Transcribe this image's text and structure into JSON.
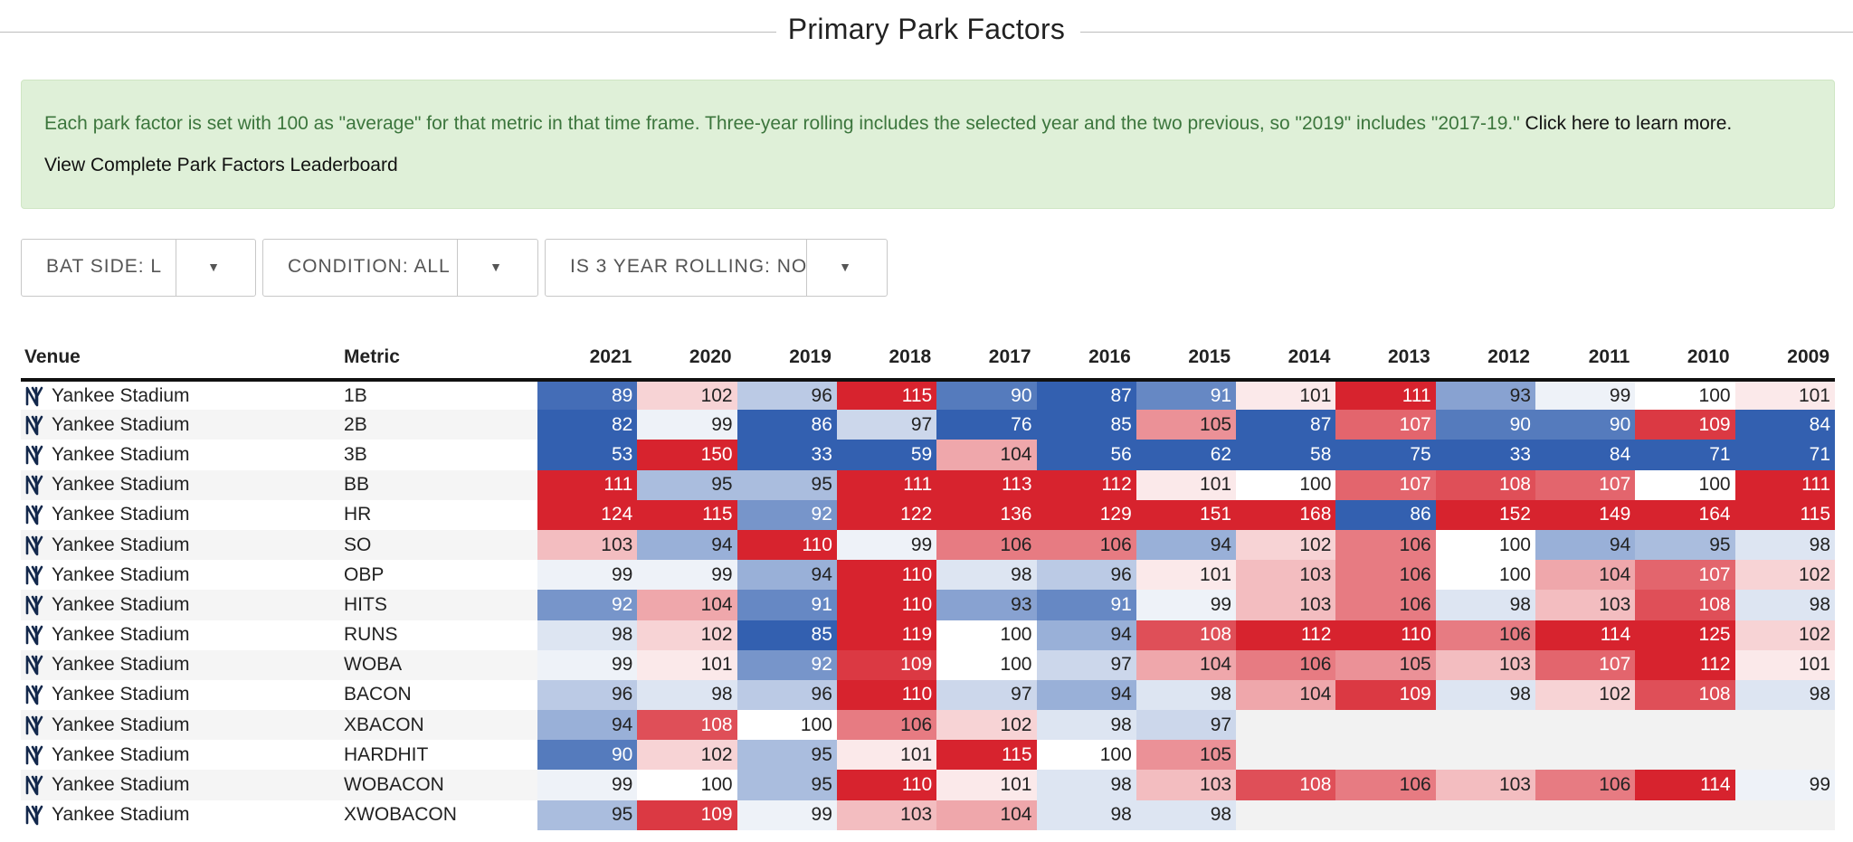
{
  "header": {
    "title": "Primary Park Factors"
  },
  "notice": {
    "text": "Each park factor is set with 100 as \"average\" for that metric in that time frame. Three-year rolling includes the selected year and the two previous, so \"2019\" includes \"2017-19.\" ",
    "link": "Click here to learn more.",
    "leaderboard_link": "View Complete Park Factors Leaderboard"
  },
  "filters": [
    {
      "label": "BAT SIDE: L"
    },
    {
      "label": "CONDITION: ALL"
    },
    {
      "label": "IS 3 YEAR ROLLING: NO"
    }
  ],
  "table": {
    "venue_header": "Venue",
    "metric_header": "Metric",
    "years": [
      "2021",
      "2020",
      "2019",
      "2018",
      "2017",
      "2016",
      "2015",
      "2014",
      "2013",
      "2012",
      "2011",
      "2010",
      "2009"
    ],
    "venue": "Yankee Stadium",
    "team_icon": "ny-yankees-logo-icon",
    "rows": [
      {
        "metric": "1B",
        "values": [
          89,
          102,
          96,
          115,
          90,
          87,
          91,
          101,
          111,
          93,
          99,
          100,
          101
        ]
      },
      {
        "metric": "2B",
        "values": [
          82,
          99,
          86,
          97,
          76,
          85,
          105,
          87,
          107,
          90,
          90,
          109,
          84
        ]
      },
      {
        "metric": "3B",
        "values": [
          53,
          150,
          33,
          59,
          104,
          56,
          62,
          58,
          75,
          33,
          84,
          71,
          71
        ]
      },
      {
        "metric": "BB",
        "values": [
          111,
          95,
          95,
          111,
          113,
          112,
          101,
          100,
          107,
          108,
          107,
          100,
          111
        ]
      },
      {
        "metric": "HR",
        "values": [
          124,
          115,
          92,
          122,
          136,
          129,
          151,
          168,
          86,
          152,
          149,
          164,
          115
        ]
      },
      {
        "metric": "SO",
        "values": [
          103,
          94,
          110,
          99,
          106,
          106,
          94,
          102,
          106,
          100,
          94,
          95,
          98
        ]
      },
      {
        "metric": "OBP",
        "values": [
          99,
          99,
          94,
          110,
          98,
          96,
          101,
          103,
          106,
          100,
          104,
          107,
          102
        ]
      },
      {
        "metric": "HITS",
        "values": [
          92,
          104,
          91,
          110,
          93,
          91,
          99,
          103,
          106,
          98,
          103,
          108,
          98
        ]
      },
      {
        "metric": "RUNS",
        "values": [
          98,
          102,
          85,
          119,
          100,
          94,
          108,
          112,
          110,
          106,
          114,
          125,
          102
        ]
      },
      {
        "metric": "WOBA",
        "values": [
          99,
          101,
          92,
          109,
          100,
          97,
          104,
          106,
          105,
          103,
          107,
          112,
          101
        ]
      },
      {
        "metric": "BACON",
        "values": [
          96,
          98,
          96,
          110,
          97,
          94,
          98,
          104,
          109,
          98,
          102,
          108,
          98
        ]
      },
      {
        "metric": "XBACON",
        "values": [
          94,
          108,
          100,
          106,
          102,
          98,
          97,
          null,
          null,
          null,
          null,
          null,
          null
        ]
      },
      {
        "metric": "HARDHIT",
        "values": [
          90,
          102,
          95,
          101,
          115,
          100,
          105,
          null,
          null,
          null,
          null,
          null,
          null
        ]
      },
      {
        "metric": "WOBACON",
        "values": [
          99,
          100,
          95,
          110,
          101,
          98,
          103,
          108,
          106,
          103,
          106,
          114,
          99
        ]
      },
      {
        "metric": "XWOBACON",
        "values": [
          95,
          109,
          99,
          103,
          104,
          98,
          98,
          null,
          null,
          null,
          null,
          null,
          null
        ]
      }
    ]
  },
  "colors": {
    "low": "#3360b0",
    "neutral": "#ffffff",
    "high": "#d7232e",
    "notice_bg": "#dff0d8",
    "notice_text": "#3c763d"
  }
}
